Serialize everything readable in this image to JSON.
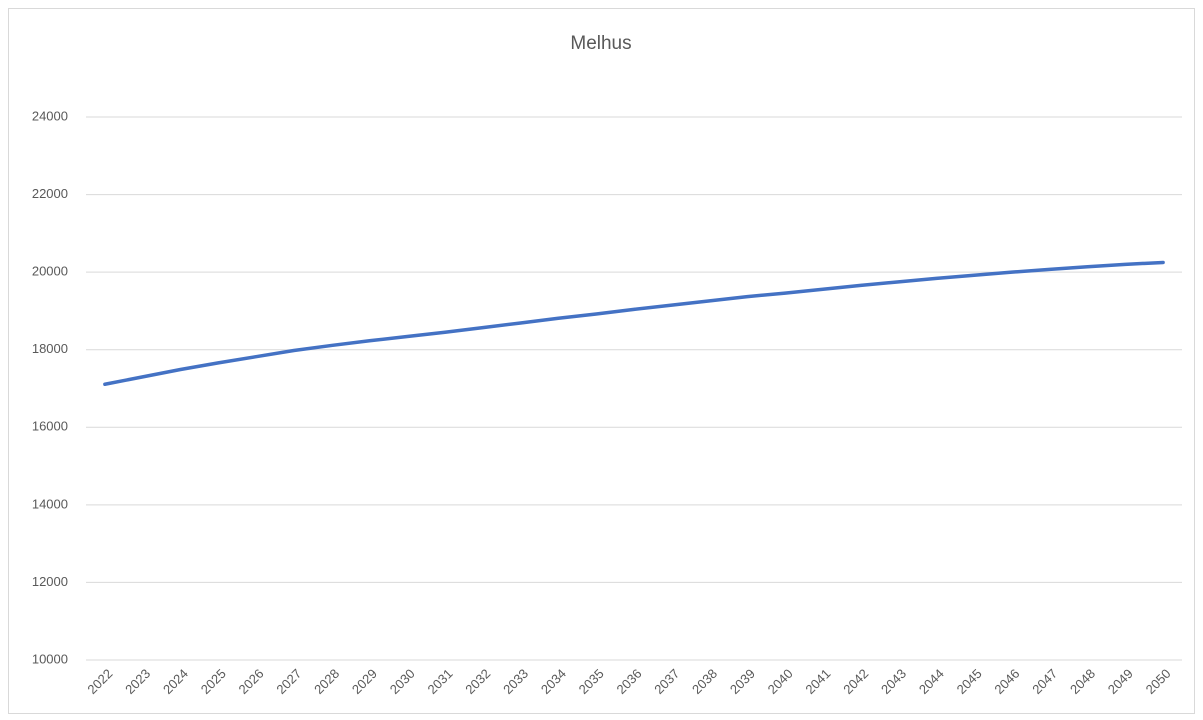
{
  "chart_data": {
    "type": "line",
    "title": "Melhus",
    "categories": [
      "2022",
      "2023",
      "2024",
      "2025",
      "2026",
      "2027",
      "2028",
      "2029",
      "2030",
      "2031",
      "2032",
      "2033",
      "2034",
      "2035",
      "2036",
      "2037",
      "2038",
      "2039",
      "2040",
      "2041",
      "2042",
      "2043",
      "2044",
      "2045",
      "2046",
      "2047",
      "2048",
      "2049",
      "2050"
    ],
    "series": [
      {
        "name": "Melhus",
        "color": "#4472c4",
        "values": [
          17110,
          17300,
          17490,
          17660,
          17820,
          17980,
          18110,
          18230,
          18340,
          18450,
          18570,
          18690,
          18810,
          18920,
          19040,
          19150,
          19260,
          19370,
          19460,
          19560,
          19660,
          19750,
          19840,
          19920,
          20000,
          20070,
          20140,
          20200,
          20250
        ]
      }
    ],
    "ylim": [
      10000,
      24000
    ],
    "yticks": [
      10000,
      12000,
      14000,
      16000,
      18000,
      20000,
      22000,
      24000
    ],
    "grid": true
  }
}
